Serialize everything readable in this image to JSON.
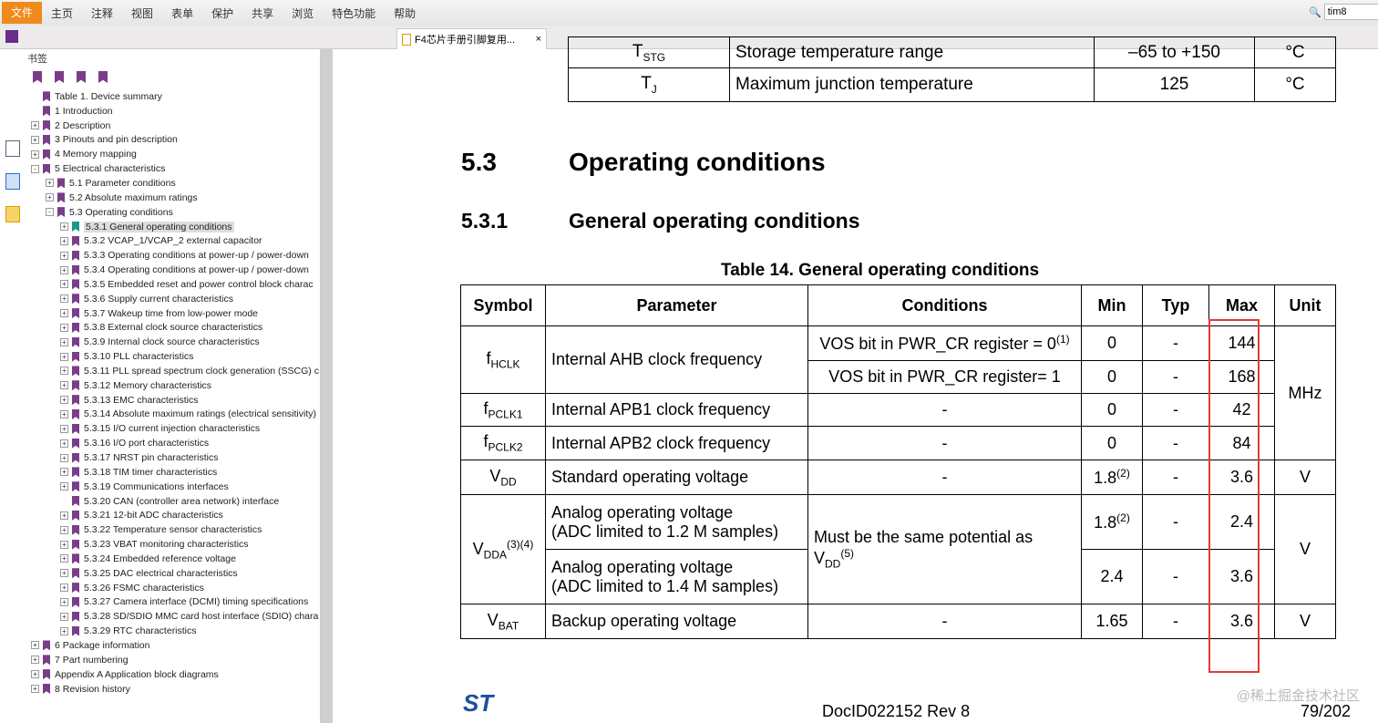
{
  "menu": {
    "items": [
      "文件",
      "主页",
      "注释",
      "视图",
      "表单",
      "保护",
      "共享",
      "浏览",
      "特色功能",
      "帮助"
    ]
  },
  "tab": {
    "title": "F4芯片手册引脚复用...",
    "close": "×"
  },
  "search": {
    "value": "tim8"
  },
  "sidebar": {
    "title": "书签",
    "tree": [
      {
        "label": "Table 1. Device summary",
        "level": 0,
        "exp": ""
      },
      {
        "label": "1 Introduction",
        "level": 0,
        "exp": ""
      },
      {
        "label": "2 Description",
        "level": 0,
        "exp": "+"
      },
      {
        "label": "3 Pinouts and pin description",
        "level": 0,
        "exp": "+"
      },
      {
        "label": "4 Memory mapping",
        "level": 0,
        "exp": "+"
      },
      {
        "label": "5 Electrical characteristics",
        "level": 0,
        "exp": "-"
      },
      {
        "label": "5.1 Parameter conditions",
        "level": 1,
        "exp": "+"
      },
      {
        "label": "5.2 Absolute maximum ratings",
        "level": 1,
        "exp": "+"
      },
      {
        "label": "5.3 Operating conditions",
        "level": 1,
        "exp": "-"
      },
      {
        "label": "5.3.1 General operating conditions",
        "level": 2,
        "exp": "+",
        "selected": true
      },
      {
        "label": "5.3.2 VCAP_1/VCAP_2 external capacitor",
        "level": 2,
        "exp": "+"
      },
      {
        "label": "5.3.3 Operating conditions at power-up / power-down",
        "level": 2,
        "exp": "+"
      },
      {
        "label": "5.3.4 Operating conditions at power-up / power-down",
        "level": 2,
        "exp": "+"
      },
      {
        "label": "5.3.5 Embedded reset and power control block charac",
        "level": 2,
        "exp": "+"
      },
      {
        "label": "5.3.6 Supply current characteristics",
        "level": 2,
        "exp": "+"
      },
      {
        "label": "5.3.7 Wakeup time from low-power mode",
        "level": 2,
        "exp": "+"
      },
      {
        "label": "5.3.8 External clock source characteristics",
        "level": 2,
        "exp": "+"
      },
      {
        "label": "5.3.9 Internal clock source characteristics",
        "level": 2,
        "exp": "+"
      },
      {
        "label": "5.3.10 PLL characteristics",
        "level": 2,
        "exp": "+"
      },
      {
        "label": "5.3.11 PLL spread spectrum clock generation (SSCG) c",
        "level": 2,
        "exp": "+"
      },
      {
        "label": "5.3.12 Memory characteristics",
        "level": 2,
        "exp": "+"
      },
      {
        "label": "5.3.13 EMC characteristics",
        "level": 2,
        "exp": "+"
      },
      {
        "label": "5.3.14 Absolute maximum ratings (electrical sensitivity)",
        "level": 2,
        "exp": "+"
      },
      {
        "label": "5.3.15 I/O current injection characteristics",
        "level": 2,
        "exp": "+"
      },
      {
        "label": "5.3.16 I/O port characteristics",
        "level": 2,
        "exp": "+"
      },
      {
        "label": "5.3.17 NRST pin characteristics",
        "level": 2,
        "exp": "+"
      },
      {
        "label": "5.3.18 TIM timer characteristics",
        "level": 2,
        "exp": "+"
      },
      {
        "label": "5.3.19 Communications interfaces",
        "level": 2,
        "exp": "+"
      },
      {
        "label": "5.3.20 CAN (controller area network) interface",
        "level": 2,
        "exp": ""
      },
      {
        "label": "5.3.21 12-bit ADC characteristics",
        "level": 2,
        "exp": "+"
      },
      {
        "label": "5.3.22 Temperature sensor characteristics",
        "level": 2,
        "exp": "+"
      },
      {
        "label": "5.3.23 VBAT monitoring characteristics",
        "level": 2,
        "exp": "+"
      },
      {
        "label": "5.3.24 Embedded reference voltage",
        "level": 2,
        "exp": "+"
      },
      {
        "label": "5.3.25 DAC electrical characteristics",
        "level": 2,
        "exp": "+"
      },
      {
        "label": "5.3.26 FSMC characteristics",
        "level": 2,
        "exp": "+"
      },
      {
        "label": "5.3.27 Camera interface (DCMI) timing specifications",
        "level": 2,
        "exp": "+"
      },
      {
        "label": "5.3.28 SD/SDIO MMC card host interface (SDIO) chara",
        "level": 2,
        "exp": "+"
      },
      {
        "label": "5.3.29 RTC characteristics",
        "level": 2,
        "exp": "+"
      },
      {
        "label": "6 Package information",
        "level": 0,
        "exp": "+"
      },
      {
        "label": "7 Part numbering",
        "level": 0,
        "exp": "+"
      },
      {
        "label": "Appendix A Application block diagrams",
        "level": 0,
        "exp": "+"
      },
      {
        "label": "8 Revision history",
        "level": 0,
        "exp": "+"
      }
    ]
  },
  "doc": {
    "prev_rows": [
      {
        "symbol": "T",
        "sub": "STG",
        "param": "Storage temperature range",
        "value": "–65 to +150",
        "unit": "°C"
      },
      {
        "symbol": "T",
        "sub": "J",
        "param": "Maximum junction temperature",
        "value": "125",
        "unit": "°C"
      }
    ],
    "section_num": "5.3",
    "section_title": "Operating conditions",
    "subsection_num": "5.3.1",
    "subsection_title": "General operating conditions",
    "table_title": "Table 14. General operating conditions",
    "headers": [
      "Symbol",
      "Parameter",
      "Conditions",
      "Min",
      "Typ",
      "Max",
      "Unit"
    ],
    "rows": {
      "fhclk": {
        "sym": "f",
        "sub": "HCLK",
        "param": "Internal AHB clock frequency",
        "c1": "VOS bit in PWR_CR register = 0",
        "c1sup": "(1)",
        "min1": "0",
        "typ1": "-",
        "max1": "144",
        "c2": "VOS bit in PWR_CR register= 1",
        "min2": "0",
        "typ2": "-",
        "max2": "168",
        "unit": "MHz"
      },
      "fpclk1": {
        "sym": "f",
        "sub": "PCLK1",
        "param": "Internal APB1 clock frequency",
        "cond": "-",
        "min": "0",
        "typ": "-",
        "max": "42"
      },
      "fpclk2": {
        "sym": "f",
        "sub": "PCLK2",
        "param": "Internal APB2 clock frequency",
        "cond": "-",
        "min": "0",
        "typ": "-",
        "max": "84"
      },
      "vdd": {
        "sym": "V",
        "sub": "DD",
        "param": "Standard operating voltage",
        "cond": "-",
        "min": "1.8",
        "minsup": "(2)",
        "typ": "-",
        "max": "3.6",
        "unit": "V"
      },
      "vdda": {
        "sym": "V",
        "sub": "DDA",
        "sup": "(3)(4)",
        "param1a": "Analog operating voltage",
        "param1b": "(ADC limited to 1.2 M samples)",
        "min1": "1.8",
        "min1sup": "(2)",
        "typ1": "-",
        "max1": "2.4",
        "param2a": "Analog operating voltage",
        "param2b": "(ADC limited to 1.4 M samples)",
        "min2": "2.4",
        "typ2": "-",
        "max2": "3.6",
        "cond": "Must be the same potential as",
        "cond_sym": "V",
        "cond_sub": "DD",
        "cond_sup": "(5)",
        "unit": "V"
      },
      "vbat": {
        "sym": "V",
        "sub": "BAT",
        "param": "Backup operating voltage",
        "cond": "-",
        "min": "1.65",
        "typ": "-",
        "max": "3.6",
        "unit": "V"
      }
    },
    "footer_doc": "DocID022152 Rev 8",
    "page": "79/202"
  },
  "watermark": "@稀土掘金技术社区",
  "colors": {
    "highlight_box": "#e53935",
    "menu_file": "#f08a1c"
  }
}
